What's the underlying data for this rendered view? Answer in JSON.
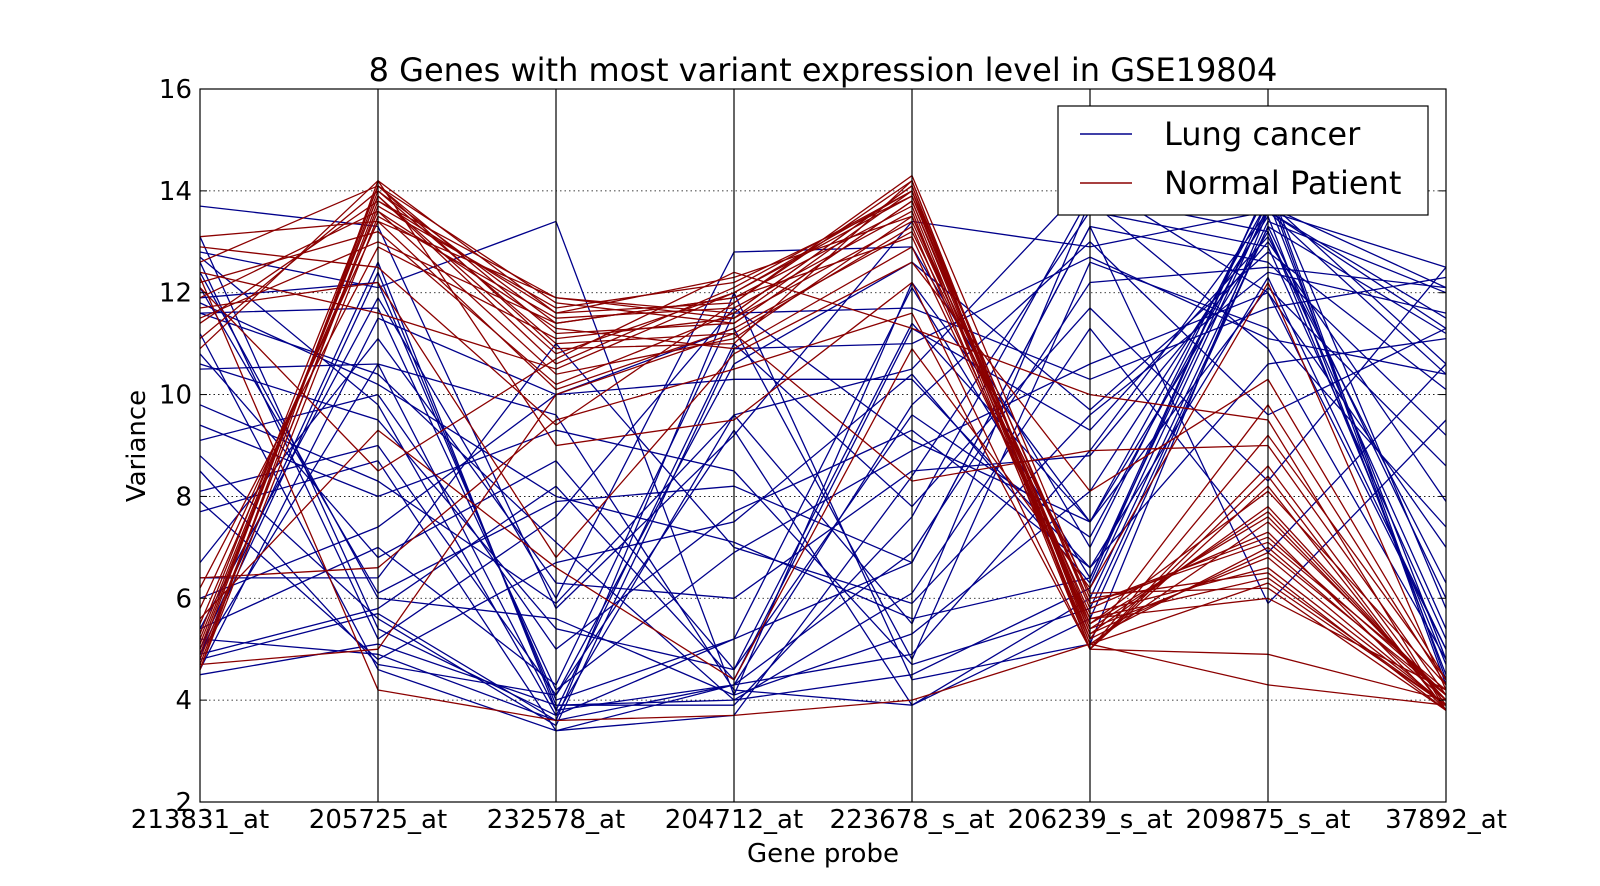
{
  "chart_data": {
    "type": "line",
    "subtype": "parallel-coordinates",
    "title": "8 Genes with most variant expression level in GSE19804",
    "xlabel": "Gene probe",
    "ylabel": "Variance",
    "ylim": [
      2,
      16
    ],
    "yticks": [
      2,
      4,
      6,
      8,
      10,
      12,
      14,
      16
    ],
    "grid": "horizontal dotted",
    "legend_position": "top-right",
    "categories": [
      "213831_at",
      "205725_at",
      "232578_at",
      "204712_at",
      "223678_s_at",
      "206239_s_at",
      "209875_s_at",
      "37892_at"
    ],
    "series": [
      {
        "name": "Lung cancer",
        "color": "#00008b",
        "lines": [
          [
            13.7,
            13.3,
            5.8,
            9.2,
            13.4,
            12.9,
            13.6,
            10.4
          ],
          [
            4.5,
            5.1,
            3.9,
            4.0,
            4.5,
            6.2,
            13.7,
            12.1
          ],
          [
            12.8,
            12.1,
            13.4,
            4.1,
            5.3,
            8.1,
            13.5,
            4.5
          ],
          [
            11.2,
            4.6,
            3.4,
            3.7,
            8.4,
            13.6,
            12.9,
            5.2
          ],
          [
            5.4,
            11.9,
            6.0,
            12.8,
            12.9,
            7.0,
            14.0,
            4.3
          ],
          [
            10.5,
            10.6,
            9.6,
            4.2,
            3.9,
            5.6,
            13.3,
            11.2
          ],
          [
            8.8,
            5.6,
            3.5,
            10.9,
            11.0,
            12.7,
            11.1,
            10.4
          ],
          [
            12.1,
            6.1,
            7.9,
            8.2,
            6.7,
            13.3,
            5.9,
            9.5
          ],
          [
            4.9,
            12.4,
            3.9,
            3.9,
            7.6,
            13.9,
            13.2,
            4.7
          ],
          [
            6.4,
            6.4,
            11.0,
            7.0,
            5.9,
            9.6,
            12.4,
            11.6
          ],
          [
            5.2,
            4.9,
            3.6,
            12.0,
            4.4,
            5.1,
            13.6,
            11.3
          ],
          [
            9.8,
            8.3,
            5.9,
            9.6,
            10.5,
            14.2,
            12.0,
            7.0
          ],
          [
            12.7,
            9.8,
            3.7,
            5.2,
            12.1,
            6.4,
            13.8,
            10.6
          ],
          [
            11.6,
            10.4,
            7.1,
            4.0,
            6.1,
            11.3,
            6.9,
            10.6
          ],
          [
            4.6,
            11.5,
            10.0,
            10.3,
            10.3,
            6.6,
            12.3,
            5.0
          ],
          [
            7.7,
            8.7,
            3.4,
            4.3,
            4.9,
            8.9,
            13.6,
            12.5
          ],
          [
            12.6,
            5.2,
            7.6,
            11.7,
            9.1,
            7.5,
            12.1,
            8.6
          ],
          [
            5.0,
            12.6,
            3.8,
            4.3,
            9.8,
            13.0,
            9.6,
            11.3
          ],
          [
            10.8,
            6.8,
            8.7,
            4.6,
            11.4,
            7.5,
            13.8,
            4.8
          ],
          [
            8.1,
            9.0,
            4.1,
            9.3,
            3.9,
            6.0,
            13.4,
            12.0
          ],
          [
            11.6,
            11.7,
            4.2,
            6.9,
            8.9,
            10.6,
            12.0,
            5.0
          ],
          [
            4.9,
            5.8,
            8.2,
            4.4,
            11.3,
            9.3,
            13.1,
            6.3
          ],
          [
            9.1,
            10.0,
            5.0,
            7.7,
            9.3,
            6.6,
            10.6,
            11.1
          ],
          [
            6.0,
            7.4,
            10.0,
            11.3,
            4.8,
            12.6,
            11.3,
            7.4
          ],
          [
            12.4,
            6.0,
            5.6,
            4.1,
            12.2,
            7.5,
            13.2,
            5.4
          ],
          [
            4.9,
            10.6,
            3.8,
            11.0,
            7.8,
            11.7,
            8.3,
            12.5
          ],
          [
            7.9,
            4.8,
            6.7,
            7.5,
            10.4,
            6.3,
            14.1,
            4.4
          ],
          [
            11.9,
            12.2,
            4.0,
            5.2,
            6.7,
            13.3,
            12.6,
            9.2
          ],
          [
            9.4,
            8.0,
            9.3,
            8.5,
            4.7,
            5.8,
            13.3,
            6.0
          ],
          [
            5.4,
            7.0,
            4.3,
            11.6,
            11.7,
            10.3,
            11.7,
            12.3
          ],
          [
            10.6,
            9.5,
            5.4,
            4.6,
            9.6,
            7.2,
            13.6,
            11.5
          ],
          [
            13.1,
            5.4,
            3.7,
            9.6,
            5.5,
            13.8,
            10.9,
            4.8
          ],
          [
            6.7,
            11.1,
            6.3,
            6.0,
            8.5,
            8.8,
            13.0,
            7.9
          ],
          [
            8.5,
            4.7,
            4.1,
            10.6,
            12.6,
            9.7,
            12.8,
            10.1
          ],
          [
            11.8,
            10.2,
            8.0,
            7.1,
            5.6,
            6.4,
            14.1,
            5.8
          ],
          [
            4.8,
            5.7,
            3.6,
            4.3,
            6.9,
            12.2,
            12.5,
            12.1
          ]
        ]
      },
      {
        "name": "Normal Patient",
        "color": "#8b0000",
        "lines": [
          [
            4.6,
            14.2,
            11.6,
            11.8,
            14.2,
            5.3,
            7.8,
            4.0
          ],
          [
            4.9,
            14.1,
            11.2,
            11.4,
            13.8,
            5.6,
            6.4,
            3.9
          ],
          [
            5.2,
            13.9,
            10.8,
            12.0,
            14.0,
            5.0,
            8.4,
            3.8
          ],
          [
            5.5,
            13.6,
            10.4,
            11.1,
            13.5,
            5.9,
            7.1,
            4.2
          ],
          [
            4.7,
            13.8,
            11.9,
            11.6,
            14.1,
            5.4,
            6.8,
            3.9
          ],
          [
            5.0,
            14.0,
            11.4,
            11.9,
            13.7,
            5.1,
            7.5,
            4.1
          ],
          [
            5.8,
            13.4,
            10.1,
            11.3,
            13.2,
            6.1,
            6.2,
            3.8
          ],
          [
            4.8,
            13.7,
            11.7,
            12.2,
            13.9,
            5.5,
            8.1,
            4.3
          ],
          [
            5.3,
            14.1,
            10.9,
            11.0,
            14.2,
            5.2,
            7.0,
            4.0
          ],
          [
            6.2,
            12.9,
            11.1,
            11.5,
            13.4,
            5.7,
            6.6,
            3.9
          ],
          [
            4.6,
            13.5,
            11.5,
            11.7,
            13.6,
            5.0,
            9.2,
            4.4
          ],
          [
            5.1,
            13.9,
            10.6,
            12.1,
            14.0,
            5.8,
            7.3,
            3.8
          ],
          [
            12.6,
            14.1,
            11.8,
            11.4,
            13.8,
            5.3,
            6.9,
            4.1
          ],
          [
            11.9,
            13.6,
            11.3,
            10.9,
            12.9,
            5.6,
            6.0,
            4.2
          ],
          [
            12.2,
            13.2,
            10.2,
            11.6,
            14.1,
            5.0,
            8.6,
            3.9
          ],
          [
            11.4,
            13.8,
            11.6,
            12.3,
            13.5,
            5.4,
            7.7,
            4.0
          ],
          [
            12.9,
            12.5,
            9.4,
            11.8,
            14.3,
            6.0,
            6.5,
            3.8
          ],
          [
            11.1,
            14.0,
            11.0,
            11.2,
            13.3,
            5.2,
            9.8,
            4.3
          ],
          [
            12.4,
            11.6,
            10.5,
            12.0,
            13.9,
            5.9,
            7.2,
            4.1
          ],
          [
            13.1,
            13.4,
            11.9,
            11.5,
            14.0,
            5.1,
            6.3,
            3.9
          ],
          [
            11.7,
            12.2,
            6.8,
            10.8,
            12.6,
            8.1,
            10.3,
            4.4
          ],
          [
            12.1,
            8.5,
            10.7,
            12.4,
            11.3,
            10.0,
            9.5,
            3.8
          ],
          [
            10.9,
            14.2,
            9.0,
            9.5,
            12.2,
            5.0,
            4.9,
            4.0
          ],
          [
            12.3,
            4.2,
            3.6,
            3.7,
            4.0,
            5.1,
            4.3,
            3.9
          ],
          [
            5.6,
            9.3,
            6.6,
            4.4,
            10.9,
            6.2,
            12.2,
            4.2
          ],
          [
            4.7,
            5.0,
            10.0,
            11.2,
            8.3,
            8.9,
            9.0,
            4.1
          ],
          [
            6.4,
            6.6,
            9.5,
            10.5,
            11.6,
            5.0,
            8.2,
            3.8
          ],
          [
            11.5,
            13.0,
            11.4,
            11.9,
            13.1,
            5.5,
            7.6,
            4.0
          ]
        ]
      }
    ]
  }
}
